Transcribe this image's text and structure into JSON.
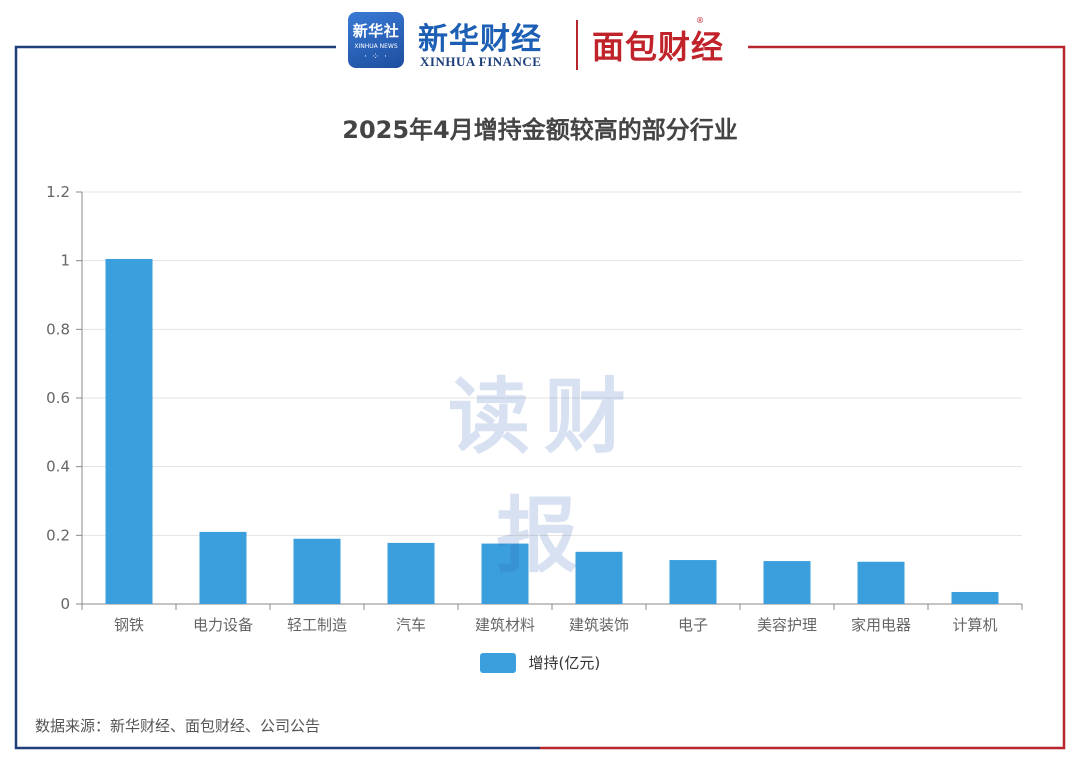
{
  "logos": {
    "xinhua_badge_cn": "新华社",
    "xinhua_badge_en": "XINHUA NEWS",
    "xinhua_finance_cn": "新华财经",
    "xinhua_finance_en": "XINHUA FINANCE",
    "mianbao": "面包财经"
  },
  "watermark": "读财报",
  "source": "数据来源：新华财经、面包财经、公司公告",
  "colors": {
    "bar": "#3a9fdc",
    "frame_left": "#1f3f7a",
    "frame_right": "#b5272d"
  },
  "chart_data": {
    "type": "bar",
    "title": "2025年4月增持金额较高的部分行业",
    "xlabel": "",
    "ylabel": "",
    "ylim": [
      0,
      1.2
    ],
    "yticks": [
      "0",
      "0.2",
      "0.4",
      "0.6",
      "0.8",
      "1",
      "1.2"
    ],
    "grid": true,
    "legend_position": "bottom",
    "categories": [
      "钢铁",
      "电力设备",
      "轻工制造",
      "汽车",
      "建筑材料",
      "建筑装饰",
      "电子",
      "美容护理",
      "家用电器",
      "计算机"
    ],
    "series": [
      {
        "name": "增持(亿元)",
        "values": [
          1.005,
          0.21,
          0.19,
          0.178,
          0.176,
          0.152,
          0.128,
          0.125,
          0.123,
          0.035
        ]
      }
    ]
  }
}
